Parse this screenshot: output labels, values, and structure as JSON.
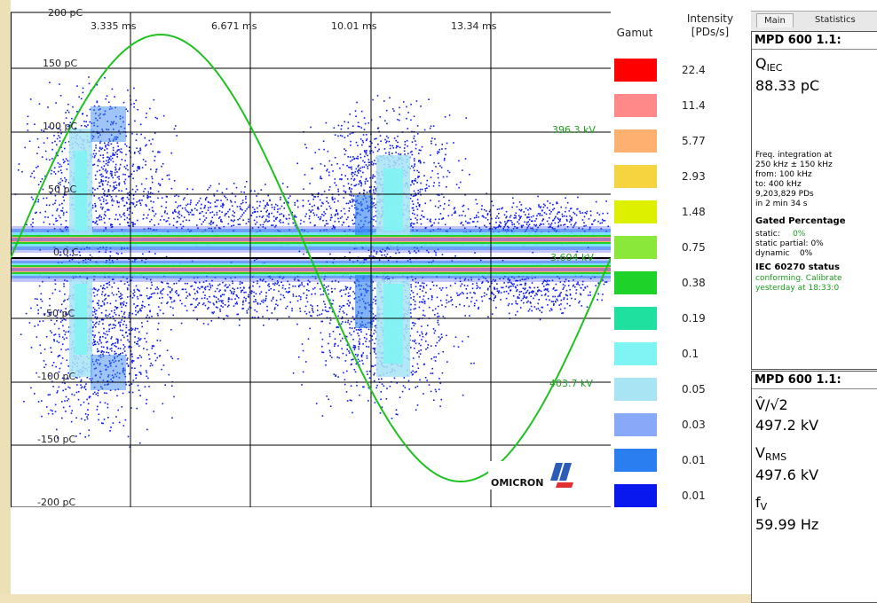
{
  "app": {
    "time_labels": [
      "3.335 ms",
      "6.671 ms",
      "10.01 ms",
      "13.34 ms"
    ],
    "charge_labels": [
      "200 pC",
      "150 pC",
      "100 pC",
      "50 pC",
      "0.0 C",
      "-50 pC",
      "-100 pC",
      "-150 pC",
      "-200 pC"
    ],
    "voltage_markers": [
      "396.3 kV",
      "403.7 kV",
      "3.604 kV"
    ],
    "logo_text": "OMICRON",
    "colors": {
      "sine": "#20c020",
      "grid": "#000000",
      "background": "#ffffff"
    }
  },
  "legend": {
    "gamut_label": "Gamut",
    "intensity_label": "Intensity",
    "intensity_unit": "[PDs/s]",
    "entries": [
      {
        "color": "#ff0000",
        "value": "22.4"
      },
      {
        "color": "#ff8888",
        "value": "11.4"
      },
      {
        "color": "#fdb070",
        "value": "5.77"
      },
      {
        "color": "#f5d440",
        "value": "2.93"
      },
      {
        "color": "#ddf000",
        "value": "1.48"
      },
      {
        "color": "#8ae83a",
        "value": "0.75"
      },
      {
        "color": "#1fd22a",
        "value": "0.38"
      },
      {
        "color": "#20e0a0",
        "value": "0.19"
      },
      {
        "color": "#7ff4f4",
        "value": "0.1"
      },
      {
        "color": "#a8e4f4",
        "value": "0.05"
      },
      {
        "color": "#88a8f8",
        "value": "0.03"
      },
      {
        "color": "#2a7ef0",
        "value": "0.01"
      },
      {
        "color": "#0a18f0",
        "value": "0.01"
      }
    ]
  },
  "tabs": {
    "main": "Main",
    "statistics": "Statistics"
  },
  "panel1": {
    "title": "MPD 600 1.1:",
    "q_label": "Q",
    "q_sub": "IEC",
    "q_value": "88.33 pC",
    "freq_line1": "Freq. integration at",
    "freq_line2": "250 kHz ± 150 kHz",
    "from_line": "from:  100 kHz",
    "to_line": "to:     400 kHz",
    "pd_count": "9,203,829 PDs",
    "duration": "in  2 min 34 s",
    "gated_heading": "Gated Percentage",
    "static_label": "static:",
    "static_value": "0%",
    "static_partial": "static partial: 0%",
    "dynamic_label": "dynamic",
    "dynamic_value": "0%",
    "iec_heading": "IEC 60270 status",
    "iec_line1": "conforming. Calibrate",
    "iec_line2": "yesterday at 18:33:0"
  },
  "panel2": {
    "title": "MPD 600 1.1:",
    "v_peak_label": "V̂/√2",
    "v_peak_value": "497.2 kV",
    "v_rms_label": "V",
    "v_rms_sub": "RMS",
    "v_rms_value": "497.6 kV",
    "f_label": "f",
    "f_sub": "V",
    "f_value": "59.99 Hz"
  }
}
